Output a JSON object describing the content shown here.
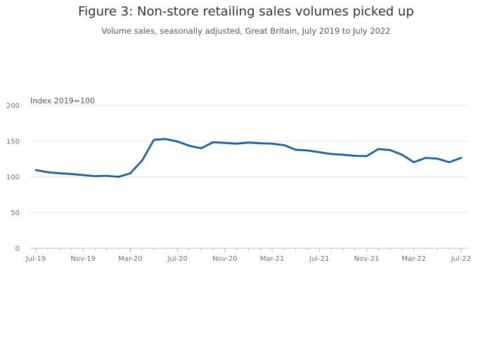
{
  "page": {
    "title": "Figure 3: Non-store retailing sales volumes picked up",
    "subtitle": "Volume sales, seasonally adjusted, Great Britain, July 2019 to July 2022"
  },
  "colors": {
    "line": "#206095",
    "grid": "#e4e4e4",
    "axis": "#bbbbbb"
  },
  "chart_data": {
    "type": "line",
    "title": "Figure 3: Non-store retailing sales volumes picked up",
    "subtitle": "Volume sales, seasonally adjusted, Great Britain, July 2019 to July 2022",
    "ylabel": "Index 2019=100",
    "xlabel": "",
    "ylim": [
      0,
      200
    ],
    "yticks": [
      0,
      50,
      100,
      150,
      200
    ],
    "grid": "horizontal",
    "xtick_labels": [
      "Jul-19",
      "Nov-19",
      "Mar-20",
      "Jul-20",
      "Nov-20",
      "Mar-21",
      "Jul-21",
      "Nov-21",
      "Mar-22",
      "Jul-22"
    ],
    "xtick_positions": [
      0,
      4,
      8,
      12,
      16,
      20,
      24,
      28,
      32,
      36
    ],
    "x": [
      "Jul-19",
      "Aug-19",
      "Sep-19",
      "Oct-19",
      "Nov-19",
      "Dec-19",
      "Jan-20",
      "Feb-20",
      "Mar-20",
      "Apr-20",
      "May-20",
      "Jun-20",
      "Jul-20",
      "Aug-20",
      "Sep-20",
      "Oct-20",
      "Nov-20",
      "Dec-20",
      "Jan-21",
      "Feb-21",
      "Mar-21",
      "Apr-21",
      "May-21",
      "Jun-21",
      "Jul-21",
      "Aug-21",
      "Sep-21",
      "Oct-21",
      "Nov-21",
      "Dec-21",
      "Jan-22",
      "Feb-22",
      "Mar-22",
      "Apr-22",
      "May-22",
      "Jun-22",
      "Jul-22"
    ],
    "series": [
      {
        "values": [
          109.5,
          106.5,
          105,
          104,
          102.5,
          101,
          101.5,
          100,
          105,
          123,
          152,
          153,
          149.5,
          143.5,
          140,
          148.5,
          147.5,
          146.5,
          148,
          147,
          146.5,
          144.5,
          138,
          137,
          134.5,
          132,
          131,
          129.5,
          129,
          139,
          137.5,
          131,
          120.5,
          126.5,
          125.5,
          120.5,
          126.5
        ]
      }
    ]
  }
}
